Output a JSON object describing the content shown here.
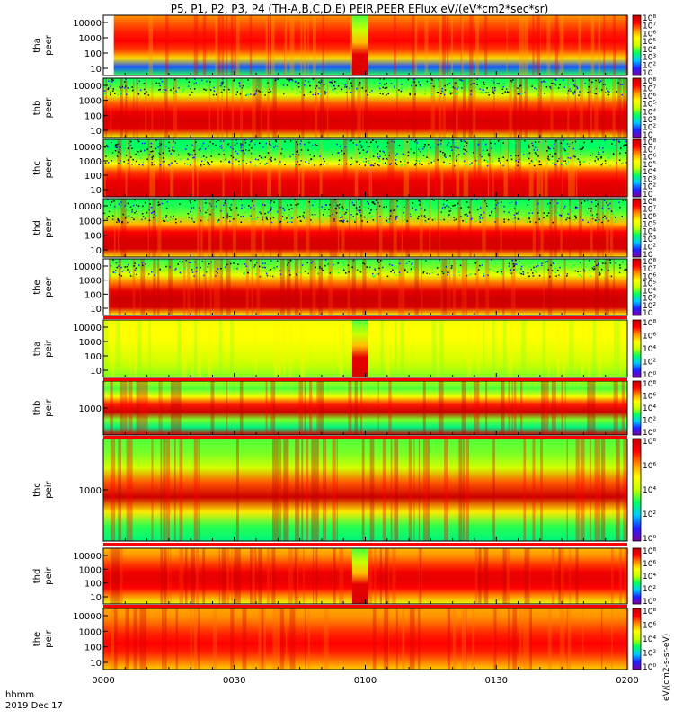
{
  "chart_data": {
    "type": "heatmap",
    "title": "P5, P1, P2, P3, P4 (TH-A,B,C,D,E) PEIR,PEER EFlux eV/(eV*cm2*sec*sr)",
    "x_axis": {
      "label_line1": "hhmm",
      "label_line2": "2019 Dec 17",
      "range": [
        "0000",
        "0200"
      ],
      "ticks": [
        "0000",
        "0030",
        "0100",
        "0130",
        "0200"
      ]
    },
    "colorbar": {
      "ticks_full": [
        "10",
        "10²",
        "10³",
        "10⁴",
        "10⁵",
        "10⁶",
        "10⁷",
        "10⁸"
      ],
      "ticks_peir": [
        "10⁰",
        "10²",
        "10⁴",
        "10⁶",
        "10⁸"
      ],
      "colors": [
        "#8000a0",
        "#2020ff",
        "#00c8ff",
        "#00ff60",
        "#c8ff00",
        "#ffff00",
        "#ff9000",
        "#ff0000",
        "#c00000"
      ]
    },
    "units_label": "eV/(cm2-s-sr-eV)",
    "panels": [
      {
        "probe": "tha",
        "product": "peer",
        "ylabel_line1": "tha",
        "ylabel_line2": "peer",
        "yticks": [
          "10",
          "100",
          "1000",
          "10000"
        ],
        "bands": [
          3.2,
          1.3,
          5.3,
          6.6,
          7.0,
          6.8,
          6.4,
          6.0
        ],
        "gap_x": [
          0.0,
          0.02
        ],
        "event_x": [
          0.475,
          0.505
        ],
        "noise_above": 9,
        "noise_amount": 0.02
      },
      {
        "probe": "thb",
        "product": "peer",
        "ylabel_line1": "thb",
        "ylabel_line2": "peer",
        "yticks": [
          "10",
          "100",
          "1000",
          "10000"
        ],
        "bands": [
          4.6,
          7.4,
          7.6,
          7.2,
          6.4,
          4.4,
          3.4,
          3.0
        ],
        "gap_x": null,
        "event_x": null,
        "noise_above": 0.72,
        "noise_amount": 0.45
      },
      {
        "probe": "thc",
        "product": "peer",
        "ylabel_line1": "thc",
        "ylabel_line2": "peer",
        "yticks": [
          "10",
          "100",
          "1000",
          "10000"
        ],
        "bands": [
          7.6,
          7.5,
          7.2,
          6.6,
          5.0,
          3.5,
          3.0,
          3.0
        ],
        "gap_x": null,
        "event_x": null,
        "noise_above": 0.55,
        "noise_amount": 0.45
      },
      {
        "probe": "thd",
        "product": "peer",
        "ylabel_line1": "thd",
        "ylabel_line2": "peer",
        "yticks": [
          "10",
          "100",
          "1000",
          "10000"
        ],
        "bands": [
          5.2,
          7.6,
          7.6,
          7.0,
          5.6,
          3.6,
          3.2,
          3.0
        ],
        "gap_x": null,
        "event_x": null,
        "noise_above": 0.6,
        "noise_amount": 0.45
      },
      {
        "probe": "the",
        "product": "peer",
        "ylabel_line1": "the",
        "ylabel_line2": "peer",
        "yticks": [
          "10",
          "100",
          "1000",
          "10000"
        ],
        "bands": [
          5.0,
          7.6,
          7.8,
          7.4,
          6.2,
          4.6,
          3.6,
          3.2
        ],
        "gap_x": [
          0.0,
          0.01
        ],
        "event_x": null,
        "noise_above": 0.7,
        "noise_amount": 0.35
      },
      {
        "probe": "tha",
        "product": "peir",
        "ylabel_line1": "tha",
        "ylabel_line2": "peir",
        "yticks": [
          "10",
          "100",
          "1000",
          "10000"
        ],
        "bands": [
          3.6,
          3.9,
          4.2,
          4.5,
          4.8,
          5.0,
          5.0,
          4.8
        ],
        "gap_x": null,
        "event_x": [
          0.475,
          0.505
        ],
        "noise_above": 9,
        "noise_amount": 0.02
      },
      {
        "probe": "thb",
        "product": "peir",
        "ylabel_line1": "thb",
        "ylabel_line2": "peir",
        "yticks": [
          "1000"
        ],
        "bands": [
          7.8,
          2.8,
          3.6,
          7.8,
          6.8,
          4.8,
          3.4,
          3.8
        ],
        "gap_x": null,
        "event_x": null,
        "noise_above": 9,
        "noise_amount": 0.08
      },
      {
        "probe": "thc",
        "product": "peir",
        "ylabel_line1": "thc",
        "ylabel_line2": "peir",
        "yticks": [
          "1000"
        ],
        "bands": [
          2.8,
          3.2,
          5.2,
          7.8,
          6.4,
          4.2,
          3.6,
          3.4
        ],
        "gap_x": null,
        "event_x": null,
        "noise_above": 9,
        "noise_amount": 0.08
      },
      {
        "probe": "thd",
        "product": "peir",
        "ylabel_line1": "thd",
        "ylabel_line2": "peir",
        "yticks": [
          "10",
          "100",
          "1000",
          "10000"
        ],
        "bands": [
          4.6,
          6.0,
          7.0,
          7.4,
          7.2,
          6.6,
          6.0,
          5.6
        ],
        "gap_x": null,
        "event_x": [
          0.475,
          0.505
        ],
        "noise_above": 9,
        "noise_amount": 0.06
      },
      {
        "probe": "the",
        "product": "peir",
        "ylabel_line1": "the",
        "ylabel_line2": "peir",
        "yticks": [
          "10",
          "100",
          "1000",
          "10000"
        ],
        "bands": [
          5.4,
          6.2,
          6.8,
          7.0,
          6.8,
          6.4,
          6.0,
          5.8
        ],
        "gap_x": null,
        "event_x": null,
        "noise_above": 9,
        "noise_amount": 0.04
      }
    ]
  }
}
